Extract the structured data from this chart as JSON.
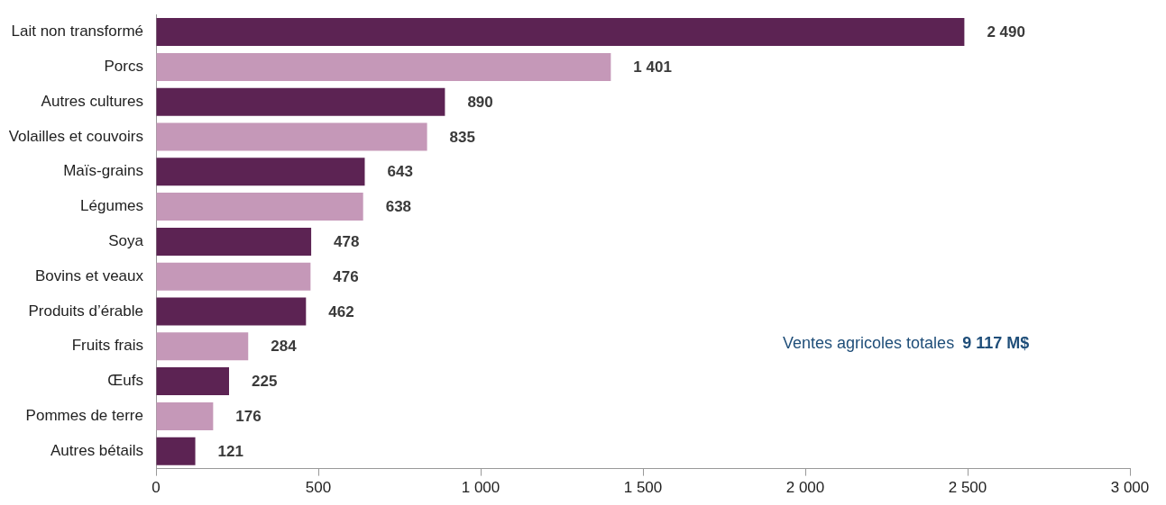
{
  "chart_data": {
    "type": "bar",
    "orientation": "horizontal",
    "categories": [
      "Lait non transformé",
      "Porcs",
      "Autres cultures",
      "Volailles et couvoirs",
      "Maïs-grains",
      "Légumes",
      "Soya",
      "Bovins et veaux",
      "Produits d’érable",
      "Fruits frais",
      "Œufs",
      "Pommes de terre",
      "Autres bétails"
    ],
    "values": [
      2490,
      1401,
      890,
      835,
      643,
      638,
      478,
      476,
      462,
      284,
      225,
      176,
      121
    ],
    "colors": [
      "#5c2353",
      "#c598b8",
      "#5c2353",
      "#c598b8",
      "#5c2353",
      "#c598b8",
      "#5c2353",
      "#c598b8",
      "#5c2353",
      "#c598b8",
      "#5c2353",
      "#c598b8",
      "#5c2353"
    ],
    "value_labels": [
      "2 490",
      "1 401",
      "890",
      "835",
      "643",
      "638",
      "478",
      "476",
      "462",
      "284",
      "225",
      "176",
      "121"
    ],
    "xlim": [
      0,
      3000
    ],
    "xticks": [
      0,
      500,
      {
        "value": 1000,
        "label": "1 000"
      },
      {
        "value": 1500,
        "label": "1 500"
      },
      {
        "value": 2000,
        "label": "2 000"
      },
      {
        "value": 2500,
        "label": "2 500"
      },
      {
        "value": 3000,
        "label": "3 000"
      }
    ],
    "annotations": [
      "Ventes agricoles totales",
      "9 117 M$"
    ],
    "grid": false,
    "legend": false
  }
}
